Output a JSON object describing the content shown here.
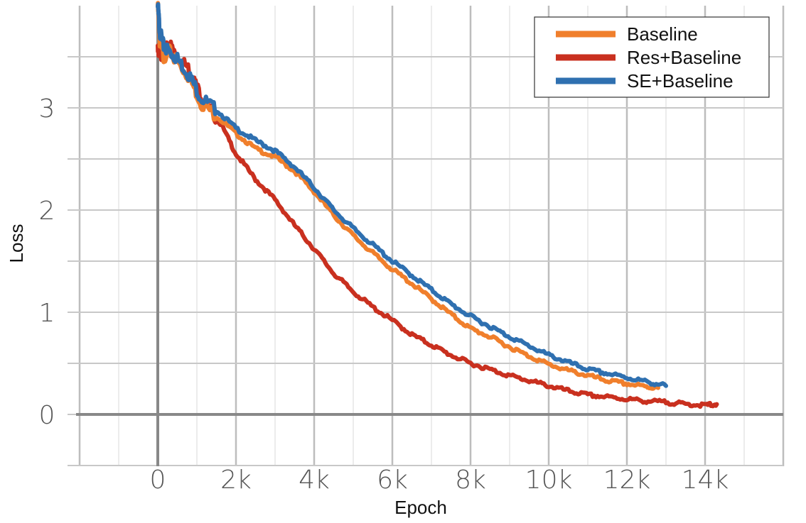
{
  "chart_data": {
    "type": "line",
    "xlabel": "Epoch",
    "ylabel": "Loss",
    "x_ticks": [
      {
        "value": 0,
        "label": "0"
      },
      {
        "value": 2000,
        "label": "2k"
      },
      {
        "value": 4000,
        "label": "4k"
      },
      {
        "value": 6000,
        "label": "6k"
      },
      {
        "value": 8000,
        "label": "8k"
      },
      {
        "value": 10000,
        "label": "10k"
      },
      {
        "value": 12000,
        "label": "12k"
      },
      {
        "value": 14000,
        "label": "14k"
      }
    ],
    "y_ticks": [
      {
        "value": 0,
        "label": "0"
      },
      {
        "value": 1,
        "label": "1"
      },
      {
        "value": 2,
        "label": "2"
      },
      {
        "value": 3,
        "label": "3"
      }
    ],
    "xlim": [
      -2000,
      16000
    ],
    "ylim": [
      -0.5,
      4.0
    ],
    "grid": true,
    "legend_position": "top-right",
    "series": [
      {
        "name": "Baseline",
        "color": "#f07f2c",
        "x": [
          0,
          50,
          150,
          300,
          500,
          800,
          1100,
          1500,
          2000,
          2500,
          3000,
          3500,
          4000,
          4500,
          5000,
          5500,
          6000,
          6500,
          7000,
          7500,
          8000,
          8500,
          9000,
          9500,
          10000,
          10500,
          11000,
          11500,
          12000,
          12500,
          12800
        ],
        "y": [
          4.0,
          3.65,
          3.5,
          3.55,
          3.45,
          3.3,
          3.05,
          2.92,
          2.75,
          2.6,
          2.52,
          2.38,
          2.18,
          1.95,
          1.75,
          1.58,
          1.42,
          1.28,
          1.13,
          0.98,
          0.84,
          0.76,
          0.66,
          0.57,
          0.49,
          0.43,
          0.38,
          0.33,
          0.3,
          0.27,
          0.26
        ]
      },
      {
        "name": "Res+Baseline",
        "color": "#c9301f",
        "x": [
          0,
          50,
          150,
          300,
          500,
          800,
          1000,
          1300,
          1600,
          2000,
          2500,
          3000,
          3500,
          4000,
          4500,
          5000,
          5500,
          6000,
          6500,
          7000,
          7500,
          8000,
          8500,
          9000,
          9500,
          10000,
          10500,
          11000,
          11500,
          12000,
          12500,
          13000,
          13500,
          14000,
          14300
        ],
        "y": [
          3.6,
          3.5,
          3.55,
          3.62,
          3.5,
          3.38,
          3.2,
          3.0,
          2.85,
          2.55,
          2.3,
          2.1,
          1.85,
          1.62,
          1.38,
          1.2,
          1.05,
          0.92,
          0.78,
          0.68,
          0.58,
          0.5,
          0.44,
          0.38,
          0.33,
          0.28,
          0.23,
          0.19,
          0.17,
          0.15,
          0.13,
          0.12,
          0.1,
          0.09,
          0.1
        ]
      },
      {
        "name": "SE+Baseline",
        "color": "#2f70b0",
        "x": [
          0,
          50,
          150,
          300,
          500,
          800,
          1100,
          1500,
          2000,
          2500,
          3000,
          3500,
          4000,
          4500,
          5000,
          5500,
          6000,
          6500,
          7000,
          7500,
          8000,
          8500,
          9000,
          9500,
          10000,
          10500,
          11000,
          11500,
          12000,
          12500,
          13000
        ],
        "y": [
          4.0,
          3.75,
          3.6,
          3.55,
          3.48,
          3.32,
          3.1,
          2.98,
          2.8,
          2.68,
          2.58,
          2.42,
          2.22,
          2.0,
          1.82,
          1.66,
          1.5,
          1.36,
          1.22,
          1.08,
          0.96,
          0.86,
          0.76,
          0.67,
          0.58,
          0.51,
          0.44,
          0.4,
          0.36,
          0.32,
          0.28
        ]
      }
    ]
  }
}
